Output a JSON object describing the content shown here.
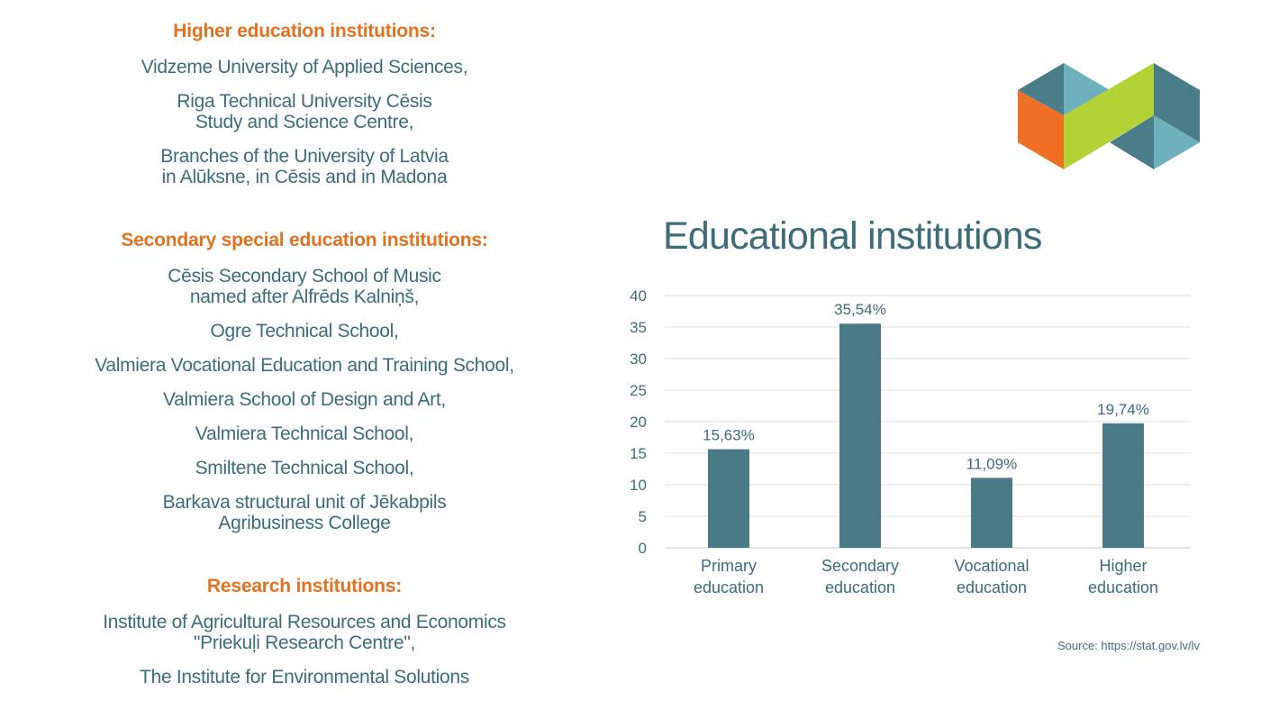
{
  "sections": {
    "higher": {
      "heading": "Higher education institutions:",
      "items": [
        "Vidzeme University of Applied Sciences,",
        "Riga Technical University Cēsis\nStudy and Science Centre,",
        "Branches of the University of Latvia\nin Alūksne, in Cēsis and in Madona"
      ]
    },
    "secondary": {
      "heading": "Secondary special education institutions:",
      "items": [
        "Cēsis Secondary School of Music\nnamed after Alfrēds Kalniņš,",
        "Ogre Technical School,",
        "Valmiera Vocational Education and Training School,",
        "Valmiera School of Design and Art,",
        "Valmiera Technical School,",
        "Smiltene Technical School,",
        "Barkava structural unit of Jēkabpils\nAgribusiness College"
      ]
    },
    "research": {
      "heading": "Research institutions:",
      "items": [
        "Institute of Agricultural Resources and Economics\n\"Priekuļi Research Centre\",",
        "The Institute for Environmental Solutions"
      ]
    }
  },
  "logo": {
    "icon": "logo-hexagon-icon",
    "colors": [
      "#4a7d87",
      "#6fb0bd",
      "#ef6f24",
      "#b2d235"
    ]
  },
  "chart_data": {
    "type": "bar",
    "title": "Educational institutions",
    "categories": [
      [
        "Primary",
        "education"
      ],
      [
        "Secondary",
        "education"
      ],
      [
        "Vocational",
        "education"
      ],
      [
        "Higher",
        "education"
      ]
    ],
    "values": [
      15.63,
      35.54,
      11.09,
      19.74
    ],
    "data_labels": [
      "15,63%",
      "35,54%",
      "11,09%",
      "19,74%"
    ],
    "ylim": [
      0,
      40
    ],
    "yticks": [
      0,
      5,
      10,
      15,
      20,
      25,
      30,
      35,
      40
    ],
    "grid": true,
    "colors": {
      "bar": "#4a7a85",
      "grid": "#dddddd",
      "text": "#3c6d78"
    }
  },
  "source": "Source: https://stat.gov.lv/lv"
}
